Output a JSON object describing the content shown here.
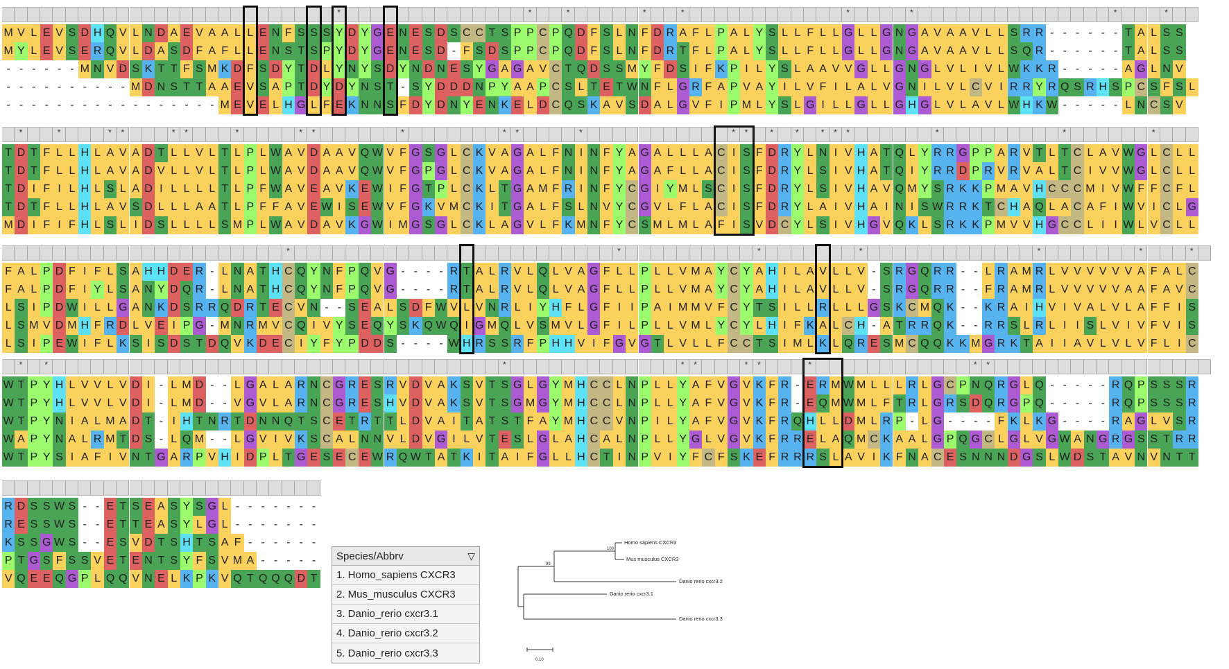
{
  "colors": {
    "A": "#fbd15e",
    "C": "#c3b783",
    "D": "#de6161",
    "E": "#de6161",
    "F": "#fbd15e",
    "G": "#ac5bd2",
    "H": "#5ee1f5",
    "I": "#fbd15e",
    "K": "#57b3ef",
    "L": "#fbd15e",
    "M": "#fbd15e",
    "N": "#4aa456",
    "P": "#9cfb6d",
    "Q": "#4aa456",
    "R": "#57b3ef",
    "S": "#4aa456",
    "T": "#4aa456",
    "V": "#fbd15e",
    "W": "#4aa456",
    "Y": "#9cfb6d",
    "gap": "#ffffff"
  },
  "blocks": [
    {
      "sequences": [
        "MVLEVSDHQVLNDAEVAALLENFSSSYDYGENESDSCCTSPPCPQDFSLNFDRAFLPALYSLLFLLGLLGNGAVAAVLLSRR------TALSS",
        "MYLEVSERQVLDASDFAFLLENSTSPYDYGENESD-FSDSPPCPQDFSLNFDRTFLPALYSLLFLLGLLGNGAVAAVLLSQR------TALSS",
        "------MNVDSKTTFSMKDFSDYTDLYNYSDYNDNESYGAGAVCTQDSSMYFDSIFKPILYSLAAVVGLLGNGLVLIVLWKKR-----AGLNV",
        "----------MDNSTTAAEVSAPTDYDYNST-SYDDDNPYAAPCSLTETWNFLGRFAPVAYILVFILALVGNILVLCVIRRYRQSRHSPCSFSL",
        "-----------------MEVELHGLFEKNNSFDYDNYENKELDCQSKAVSDALGVFIPMLYSLGILLGLLGHGLVLAVLWHKW-----LNCSV"
      ],
      "conserved_marks": "--------------------------*--------------*--*-----*--*------------*----*---------------*---*--"
    },
    {
      "sequences": [
        "TDTFLLHLAVADTLLVLTLPLWAVDAAVQWVFGSGLCKVAGALFNINFYAGALLLACISFDRYLNIVHATQLYRRGPPARVTLTCLAVWGLCLL",
        "TDTFLLHLAVADVLLVLTLPLWAVDAAVQWVFGPGLCKVAGALFNINFYAGAFLLACISFDRYLSIVHATQIYRRDPRVRVALTCIVVWGLCLL",
        "TDIFILHLSLADILLLLTLPFWAVEAVKEWIFGTPLCKLTGAMFRINFYCGIYMLSCISFDRYLSIVHAVQMYSRKKPMAVHCCCMIVWFFCFL",
        "TDTFLLHLAVSDLLLAATLPFFAVEWISEWVFGKVMCKITGALFSLNVYCGVLFLACISFDRYLAIVHAINISWRRKTCHAQLACAFIWVICLG",
        "MDIFIFHLSLIDSLLLLSMPLWAVDAVKGWIMGSGLCKLAGVLFKMNFYCSMLMLAFISVDCYLSIVHGVQKLSRKKPMVVHGCCLIIWLVCLL"
      ],
      "conserved_marks": "-*--*---**---**---*----**------*-------**----*-----------**-*-*-***------*---------*------*---"
    },
    {
      "sequences": [
        "FALPDFIFLSAHHDER-LNATHCQYNFPQVG----RTALRVLQLVAGFLLPLLVMAYCYAHILAVLLV-SRGQRR--LRAMRLVVVVVVAFALC",
        "FALPDFIYLSANYDQR-LNATHCQYNFPQVG----RTALRVLQLVAGFLLPLLVMAYCYAHILAVLLV-SRGQRR--FRAMRLVVVVVAAFAVC",
        "LSIPDWILLGANKDSRRQDRTECVN--SEALSDFWVLVNRLIYHFLGFIIPAIMMVFCYTSILLRLLLGSKCMQK--KRAIHVIVALVLAFFIS",
        "LSMVDMHFRDLVEIPG-MNRMVCQIVYSEQYSKQWQIGMQLVSMVLGFILPLLVMLYCYLHIFKALCH-ATRRQK--RRSLRLIISLVIVFVIS",
        "LSIPEWIFLKSISDSTDQVKDECIYFYPDDS----WHRSSRFPHHVIFGVGTLVLLFCCTSIMLKLQRESMCQQKKMGRKTAIIAVLVLVFLIC"
      ],
      "conserved_marks": "----------------------*-------------------------*----------*-------*-------------*-------*---*-"
    },
    {
      "sequences": [
        "WTPYHLVVLVDI-LMD--LGALARNCGRESRVDVAKSVTSGLGYMHCCLNPLLYAFVGVKFR-ERMWMLLLRLGCPNQRGLQ-----RQPSSSR",
        "WTPYHLVVLVDI-LMD--VGVLARNCGRESHVDVAKSVTSGMGYMHCCLNPLLYAFVGVKFR-EQMWMLFTRLGRSDQRGPQ-----RQPSSSR",
        "WTPYNIALMADT-IHTNRTDNNQTSCETRTTLDVAITATSTFAYMHCCVNPILYAFVGVKFRQHLLDMLRP-LG----FKLKG----RAGLVSR",
        "WAPYNALRMTDS-LQM--LGVIVKSCALNNVLDVGILVTESLGLAHCALNPLLYGLVGVKFRRELAQMCKAALGPQGCLGLVGWANGRGSSTRR",
        "WTPYSIAFIVNTGARPVHIDPLTGESECEWRQWTATKITAIFGLLHCTINPVIYFCFSKEFRRRSLAVIKFNACESNNNDGSLWDSTAVNVNTT"
      ],
      "conserved_marks": "-*-*-----------------------------------*-------------**---**---*------------**-----------------"
    },
    {
      "sequences": [
        "RDSSWS--ETSEASYSGL-------",
        "RESSWS--ETTEASYLGL-------",
        "KSSGWS--ESVDTSHTSAF------",
        "PTGSFSSVETENTSYFSVMA-----",
        "VQEEQGPLQQVNELKPKVQTQQQDT"
      ],
      "conserved_marks": "-------------------------"
    }
  ],
  "legend": {
    "header": "Species/Abbrv",
    "sort_icon": "triangle-down-icon",
    "rows": [
      "1. Homo_sapiens CXCR3",
      "2. Mus_musculus CXCR3",
      "3. Danio_rerio cxcr3.1",
      "4. Danio_rerio cxcr3.2",
      "5. Danio_rerio cxcr3.3"
    ]
  },
  "tree": {
    "taxa": [
      "Homo sapiens CXCR3",
      "Mus musculus CXCR3",
      "Danio rerio cxcr3.2",
      "Danio rerio cxcr3.1",
      "Danio rerio cxcr3.3"
    ],
    "bootstrap": [
      "100",
      "99"
    ],
    "scale_label": "0.10"
  }
}
